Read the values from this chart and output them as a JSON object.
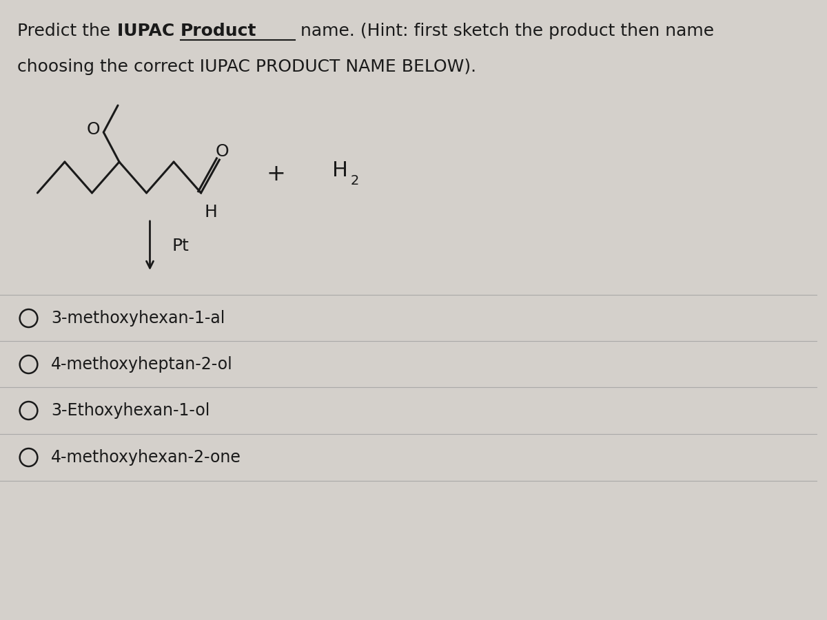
{
  "title_line1": "Predict the IUPAC ",
  "title_bold1": "Product",
  "title_line1b": " name. (Hint: first sketch the product then name",
  "title_line2": "choosing the correct IUPAC PRODUCT NAME BELOW).",
  "bg_color": "#d4d0cb",
  "text_color": "#1a1a1a",
  "options": [
    "3-methoxyhexan-1-al",
    "4-methoxyheptan-2-ol",
    "3-Ethoxyhexan-1-ol",
    "4-methoxyhexan-2-one"
  ],
  "font_size_title": 18,
  "font_size_options": 17,
  "font_size_chem": 18
}
